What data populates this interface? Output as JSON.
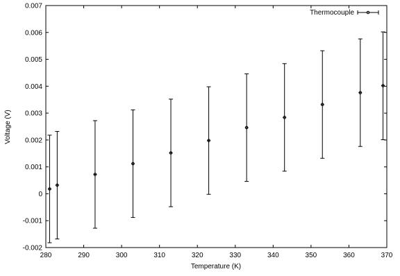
{
  "chart_data": {
    "type": "scatter",
    "xlabel": "Temperature (K)",
    "ylabel": "Voltage (V)",
    "xlim": [
      280,
      370
    ],
    "ylim": [
      -0.002,
      0.007
    ],
    "xticks": [
      280,
      290,
      300,
      310,
      320,
      330,
      340,
      350,
      360,
      370
    ],
    "xtick_labels": [
      "280",
      "290",
      "300",
      "310",
      "320",
      "330",
      "340",
      "350",
      "360",
      "370"
    ],
    "yticks": [
      -0.002,
      -0.001,
      0,
      0.001,
      0.002,
      0.003,
      0.004,
      0.005,
      0.006,
      0.007
    ],
    "ytick_labels": [
      "-0.002",
      "-0.001",
      "0",
      "0.001",
      "0.002",
      "0.003",
      "0.004",
      "0.005",
      "0.006",
      "0.007"
    ],
    "grid": false,
    "legend_position": "top-right",
    "series": [
      {
        "name": "Thermocouple",
        "x": [
          281,
          283,
          293,
          303,
          313,
          323,
          333,
          343,
          353,
          363,
          369
        ],
        "y": [
          0.00018,
          0.00032,
          0.00072,
          0.00112,
          0.00152,
          0.00198,
          0.00246,
          0.00284,
          0.00332,
          0.00376,
          0.00402
        ],
        "err_low": [
          -0.00182,
          -0.00168,
          -0.00128,
          -0.00088,
          -0.00048,
          -2e-05,
          0.00046,
          0.00084,
          0.00132,
          0.00176,
          0.00201
        ],
        "err_high": [
          0.00218,
          0.00232,
          0.00272,
          0.00312,
          0.00352,
          0.00398,
          0.00446,
          0.00484,
          0.00532,
          0.00576,
          0.00602
        ]
      }
    ]
  }
}
